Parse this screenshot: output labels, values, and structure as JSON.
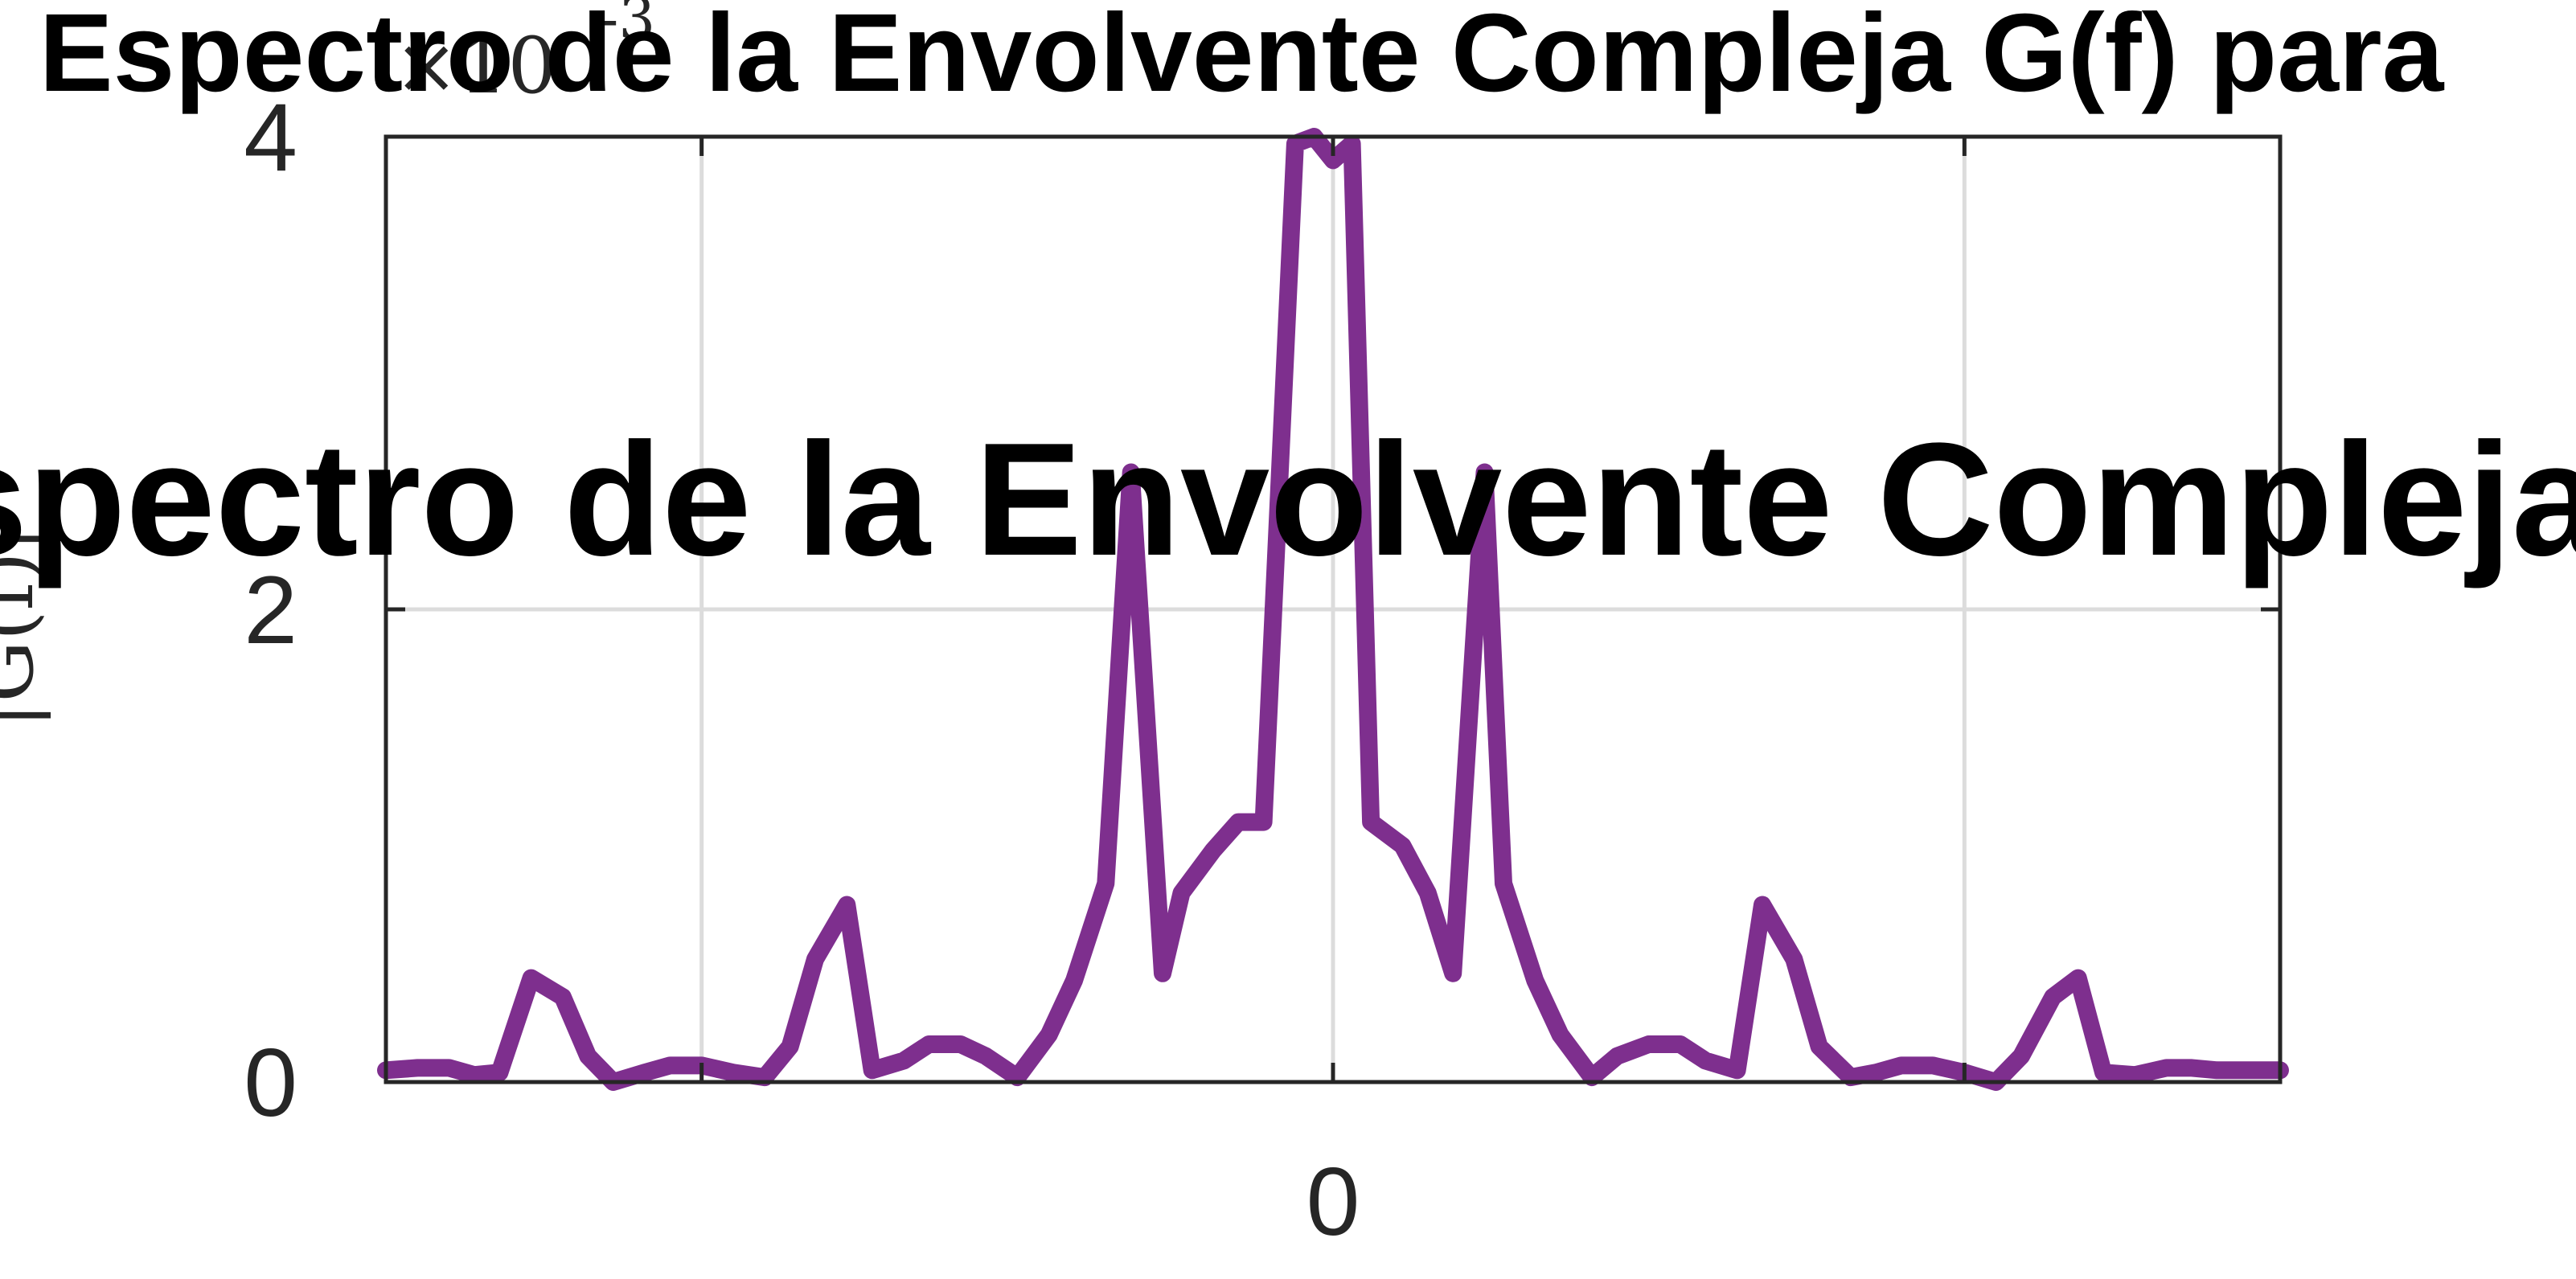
{
  "chart_data": {
    "type": "line",
    "title": "Espectro de la Envolvente Compleja G(f) para",
    "overlay_title": "Espectro de la Envolvente Compleja G",
    "xlabel": "",
    "ylabel": "|G(f)|",
    "y_exponent": "×10^-3",
    "y_exponent_base": "×10",
    "y_exponent_power": "-3",
    "xlim": [
      -1.5,
      1.5
    ],
    "ylim": [
      0,
      4
    ],
    "x_ticks": [
      -1,
      0,
      1
    ],
    "x_tick_labels": [
      "",
      "0",
      ""
    ],
    "y_ticks": [
      0,
      2,
      4
    ],
    "y_tick_labels": [
      "0",
      "2",
      "4"
    ],
    "grid": true,
    "series": [
      {
        "color": "#7E2F8E",
        "x": [
          -1.5,
          -1.45,
          -1.4,
          -1.36,
          -1.32,
          -1.27,
          -1.22,
          -1.18,
          -1.14,
          -1.09,
          -1.05,
          -1.0,
          -0.95,
          -0.9,
          -0.86,
          -0.82,
          -0.77,
          -0.73,
          -0.68,
          -0.64,
          -0.59,
          -0.55,
          -0.5,
          -0.45,
          -0.41,
          -0.36,
          -0.32,
          -0.27,
          -0.24,
          -0.19,
          -0.15,
          -0.11,
          -0.06,
          -0.03,
          0.0,
          0.03,
          0.06,
          0.11,
          0.15,
          0.19,
          0.24,
          0.27,
          0.32,
          0.36,
          0.41,
          0.45,
          0.5,
          0.55,
          0.59,
          0.64,
          0.68,
          0.73,
          0.77,
          0.82,
          0.86,
          0.9,
          0.95,
          1.0,
          1.05,
          1.09,
          1.14,
          1.18,
          1.22,
          1.27,
          1.32,
          1.36,
          1.4,
          1.45,
          1.5
        ],
        "values": [
          0.05,
          0.06,
          0.06,
          0.03,
          0.04,
          0.44,
          0.36,
          0.11,
          0.0,
          0.04,
          0.07,
          0.07,
          0.04,
          0.02,
          0.15,
          0.52,
          0.75,
          0.05,
          0.09,
          0.16,
          0.16,
          0.11,
          0.02,
          0.2,
          0.43,
          0.84,
          2.58,
          0.46,
          0.8,
          0.98,
          1.1,
          1.1,
          3.97,
          4.0,
          3.9,
          3.97,
          1.1,
          1.0,
          0.8,
          0.46,
          2.58,
          0.84,
          0.43,
          0.2,
          0.02,
          0.11,
          0.16,
          0.16,
          0.09,
          0.05,
          0.75,
          0.52,
          0.15,
          0.02,
          0.04,
          0.07,
          0.07,
          0.04,
          0.0,
          0.11,
          0.36,
          0.44,
          0.04,
          0.03,
          0.06,
          0.06,
          0.05,
          0.05,
          0.05
        ]
      }
    ]
  }
}
